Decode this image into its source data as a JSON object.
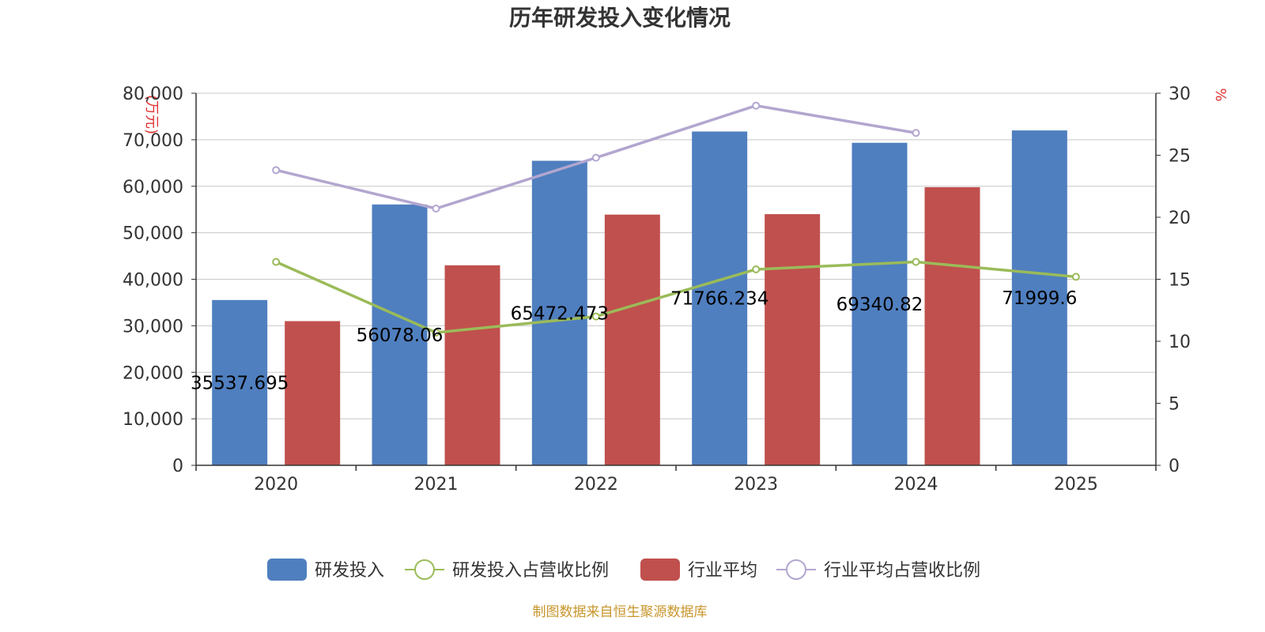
{
  "colors": {
    "bar_primary": "#4f7fbf",
    "bar_secondary": "#c0504d",
    "line_primary": "#9bbb59",
    "line_secondary": "#b3a6cf",
    "axis_unit": "#e03030",
    "source": "#c8962c",
    "grid": "#c8c8c8"
  },
  "source_text": "制图数据来自恒生聚源数据库",
  "chart_data": {
    "type": "bar",
    "title": "历年研发投入变化情况",
    "categories": [
      "2020",
      "2021",
      "2022",
      "2023",
      "2024",
      "2025"
    ],
    "y_left": {
      "unit": "(万元)",
      "range": [
        0,
        80000
      ],
      "ticks": [
        "0",
        "10,000",
        "20,000",
        "30,000",
        "40,000",
        "50,000",
        "60,000",
        "70,000",
        "80,000"
      ]
    },
    "y_right": {
      "unit": "%",
      "range": [
        0,
        30
      ],
      "ticks": [
        "0",
        "5",
        "10",
        "15",
        "20",
        "25",
        "30"
      ]
    },
    "grid": true,
    "legend_position": "bottom-center",
    "series": [
      {
        "name": "研发投入",
        "type": "bar",
        "axis": "left",
        "values": [
          35537.695,
          56078.06,
          65472.473,
          71766.234,
          69340.82,
          71999.6
        ],
        "labels": [
          "35537.695",
          "56078.06",
          "65472.473",
          "71766.234",
          "69340.82",
          "71999.6"
        ]
      },
      {
        "name": "研发投入占营收比例",
        "type": "line",
        "axis": "right",
        "values": [
          16.4,
          10.7,
          12.0,
          15.8,
          16.4,
          15.2
        ]
      },
      {
        "name": "行业平均",
        "type": "bar",
        "axis": "left",
        "values": [
          31000,
          43000,
          53900,
          54000,
          59800,
          null
        ]
      },
      {
        "name": "行业平均占营收比例",
        "type": "line",
        "axis": "right",
        "values": [
          23.8,
          20.7,
          24.8,
          29.0,
          26.8,
          null
        ]
      }
    ]
  }
}
